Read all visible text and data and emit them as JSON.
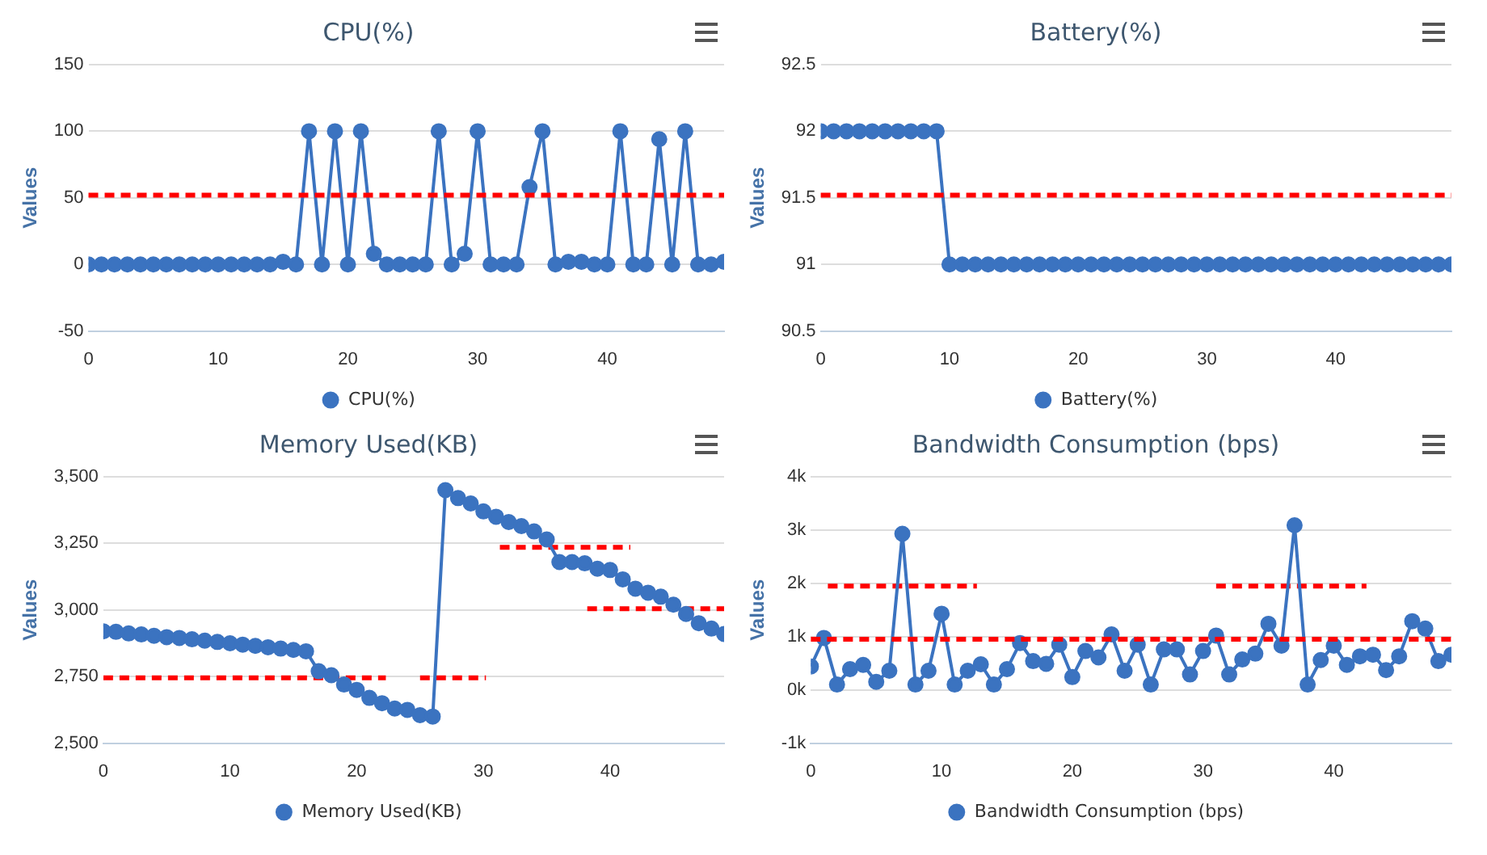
{
  "chart_data": [
    {
      "type": "line",
      "title": "CPU(%)",
      "ylabel": "Values",
      "x": [
        0,
        1,
        2,
        3,
        4,
        5,
        6,
        7,
        8,
        9,
        10,
        11,
        12,
        13,
        14,
        15,
        16,
        17,
        18,
        19,
        20,
        21,
        22,
        23,
        24,
        25,
        26,
        27,
        28,
        29,
        30,
        31,
        32,
        33,
        34,
        35,
        36,
        37,
        38,
        39,
        40,
        41,
        42,
        43,
        44,
        45,
        46,
        47,
        48,
        49
      ],
      "xlim": [
        0,
        49
      ],
      "xticks": [
        0,
        10,
        20,
        30,
        40
      ],
      "ylim": [
        -50,
        150
      ],
      "yticks": [
        -50,
        0,
        50,
        100,
        150
      ],
      "grid": "y",
      "legend": "bottom",
      "marker": "circle",
      "line_style": "solid",
      "series": [
        {
          "name": "CPU(%)",
          "color": "#3b73c0",
          "values": [
            0,
            0,
            0,
            0,
            0,
            0,
            0,
            0,
            0,
            0,
            0,
            0,
            0,
            0,
            0,
            2,
            0,
            100,
            0,
            100,
            0,
            100,
            8,
            0,
            0,
            0,
            0,
            100,
            0,
            8,
            100,
            0,
            0,
            0,
            58,
            100,
            0,
            2,
            2,
            0,
            0,
            100,
            0,
            0,
            94,
            0,
            100,
            0,
            0,
            2
          ]
        }
      ],
      "ref_lines": [
        {
          "axis": "y",
          "value": 52,
          "color": "#ff0000",
          "line_style": "dashed"
        }
      ]
    },
    {
      "type": "line",
      "title": "Battery(%)",
      "ylabel": "Values",
      "x": [
        0,
        1,
        2,
        3,
        4,
        5,
        6,
        7,
        8,
        9,
        10,
        11,
        12,
        13,
        14,
        15,
        16,
        17,
        18,
        19,
        20,
        21,
        22,
        23,
        24,
        25,
        26,
        27,
        28,
        29,
        30,
        31,
        32,
        33,
        34,
        35,
        36,
        37,
        38,
        39,
        40,
        41,
        42,
        43,
        44,
        45,
        46,
        47,
        48,
        49
      ],
      "xlim": [
        0,
        49
      ],
      "xticks": [
        0,
        10,
        20,
        30,
        40
      ],
      "ylim": [
        90.5,
        92.5
      ],
      "yticks": [
        90.5,
        91,
        91.5,
        92,
        92.5
      ],
      "grid": "y",
      "legend": "bottom",
      "marker": "circle",
      "line_style": "solid",
      "series": [
        {
          "name": "Battery(%)",
          "color": "#3b73c0",
          "values": [
            92,
            92,
            92,
            92,
            92,
            92,
            92,
            92,
            92,
            92,
            91,
            91,
            91,
            91,
            91,
            91,
            91,
            91,
            91,
            91,
            91,
            91,
            91,
            91,
            91,
            91,
            91,
            91,
            91,
            91,
            91,
            91,
            91,
            91,
            91,
            91,
            91,
            91,
            91,
            91,
            91,
            91,
            91,
            91,
            91,
            91,
            91,
            91,
            91,
            91
          ]
        }
      ],
      "ref_lines": [
        {
          "axis": "y",
          "value": 91.52,
          "color": "#ff0000",
          "line_style": "dashed"
        }
      ]
    },
    {
      "type": "line",
      "title": "Memory Used(KB)",
      "ylabel": "Values",
      "x": [
        0,
        1,
        2,
        3,
        4,
        5,
        6,
        7,
        8,
        9,
        10,
        11,
        12,
        13,
        14,
        15,
        16,
        17,
        18,
        19,
        20,
        21,
        22,
        23,
        24,
        25,
        26,
        27,
        28,
        29,
        30,
        31,
        32,
        33,
        34,
        35,
        36,
        37,
        38,
        39,
        40,
        41,
        42,
        43,
        44,
        45,
        46,
        47,
        48,
        49
      ],
      "xlim": [
        0,
        49
      ],
      "xticks": [
        0,
        10,
        20,
        30,
        40
      ],
      "ylim": [
        2500,
        3500
      ],
      "yticks": [
        {
          "value": 2500,
          "label": "2,500"
        },
        {
          "value": 2750,
          "label": "2,750"
        },
        {
          "value": 3000,
          "label": "3,000"
        },
        {
          "value": 3250,
          "label": "3,250"
        },
        {
          "value": 3500,
          "label": "3,500"
        }
      ],
      "grid": "y",
      "legend": "bottom",
      "marker": "circle",
      "line_style": "solid",
      "series": [
        {
          "name": "Memory Used(KB)",
          "color": "#3b73c0",
          "values": [
            2920,
            2918,
            2912,
            2908,
            2903,
            2898,
            2895,
            2890,
            2885,
            2880,
            2875,
            2870,
            2865,
            2860,
            2855,
            2850,
            2845,
            2770,
            2755,
            2720,
            2700,
            2670,
            2650,
            2630,
            2625,
            2605,
            2600,
            3450,
            3420,
            3400,
            3370,
            3350,
            3330,
            3315,
            3295,
            3265,
            3180,
            3180,
            3175,
            3155,
            3150,
            3115,
            3080,
            3065,
            3050,
            3020,
            2985,
            2950,
            2930,
            2910
          ]
        },
        {
          "color": "#ff0000",
          "line_style": "dashed",
          "marker": "none",
          "x": [
            0,
            22.3
          ],
          "values": [
            2745,
            2745
          ]
        },
        {
          "color": "#ff0000",
          "line_style": "dashed",
          "marker": "none",
          "x": [
            25,
            30.2
          ],
          "values": [
            2745,
            2745
          ]
        },
        {
          "color": "#ff0000",
          "line_style": "dashed",
          "marker": "none",
          "x": [
            31.3,
            41.6
          ],
          "values": [
            3235,
            3235
          ]
        },
        {
          "color": "#ff0000",
          "line_style": "dashed",
          "marker": "none",
          "x": [
            38.2,
            49
          ],
          "values": [
            3005,
            3005
          ]
        }
      ]
    },
    {
      "type": "line",
      "title": "Bandwidth Consumption (bps)",
      "ylabel": "Values",
      "x": [
        0,
        1,
        2,
        3,
        4,
        5,
        6,
        7,
        8,
        9,
        10,
        11,
        12,
        13,
        14,
        15,
        16,
        17,
        18,
        19,
        20,
        21,
        22,
        23,
        24,
        25,
        26,
        27,
        28,
        29,
        30,
        31,
        32,
        33,
        34,
        35,
        36,
        37,
        38,
        39,
        40,
        41,
        42,
        43,
        44,
        45,
        46,
        47,
        48,
        49
      ],
      "xlim": [
        0,
        49
      ],
      "xticks": [
        0,
        10,
        20,
        30,
        40
      ],
      "ylim": [
        -1000,
        4000
      ],
      "yticks": [
        {
          "value": -1000,
          "label": "-1k"
        },
        {
          "value": 0,
          "label": "0k"
        },
        {
          "value": 1000,
          "label": "1k"
        },
        {
          "value": 2000,
          "label": "2k"
        },
        {
          "value": 3000,
          "label": "3k"
        },
        {
          "value": 4000,
          "label": "4k"
        }
      ],
      "grid": "y",
      "legend": "bottom",
      "marker": "circle",
      "line_style": "solid",
      "series": [
        {
          "name": "Bandwidth Consumption (bps)",
          "color": "#3b73c0",
          "values": [
            440,
            975,
            100,
            390,
            470,
            150,
            360,
            2930,
            100,
            360,
            1430,
            100,
            360,
            480,
            100,
            390,
            880,
            540,
            490,
            850,
            240,
            730,
            610,
            1040,
            360,
            850,
            100,
            760,
            760,
            290,
            730,
            1020,
            290,
            570,
            680,
            1240,
            830,
            3090,
            100,
            560,
            830,
            470,
            630,
            660,
            370,
            630,
            1290,
            1150,
            540,
            660
          ]
        },
        {
          "color": "#ff0000",
          "line_style": "dashed",
          "marker": "none",
          "x": [
            1.3,
            12.7
          ],
          "values": [
            1950,
            1950
          ]
        },
        {
          "color": "#ff0000",
          "line_style": "dashed",
          "marker": "none",
          "x": [
            31,
            42.5
          ],
          "values": [
            1950,
            1950
          ]
        }
      ],
      "ref_lines": [
        {
          "axis": "y",
          "value": 950,
          "color": "#ff0000",
          "line_style": "dashed"
        }
      ]
    }
  ]
}
